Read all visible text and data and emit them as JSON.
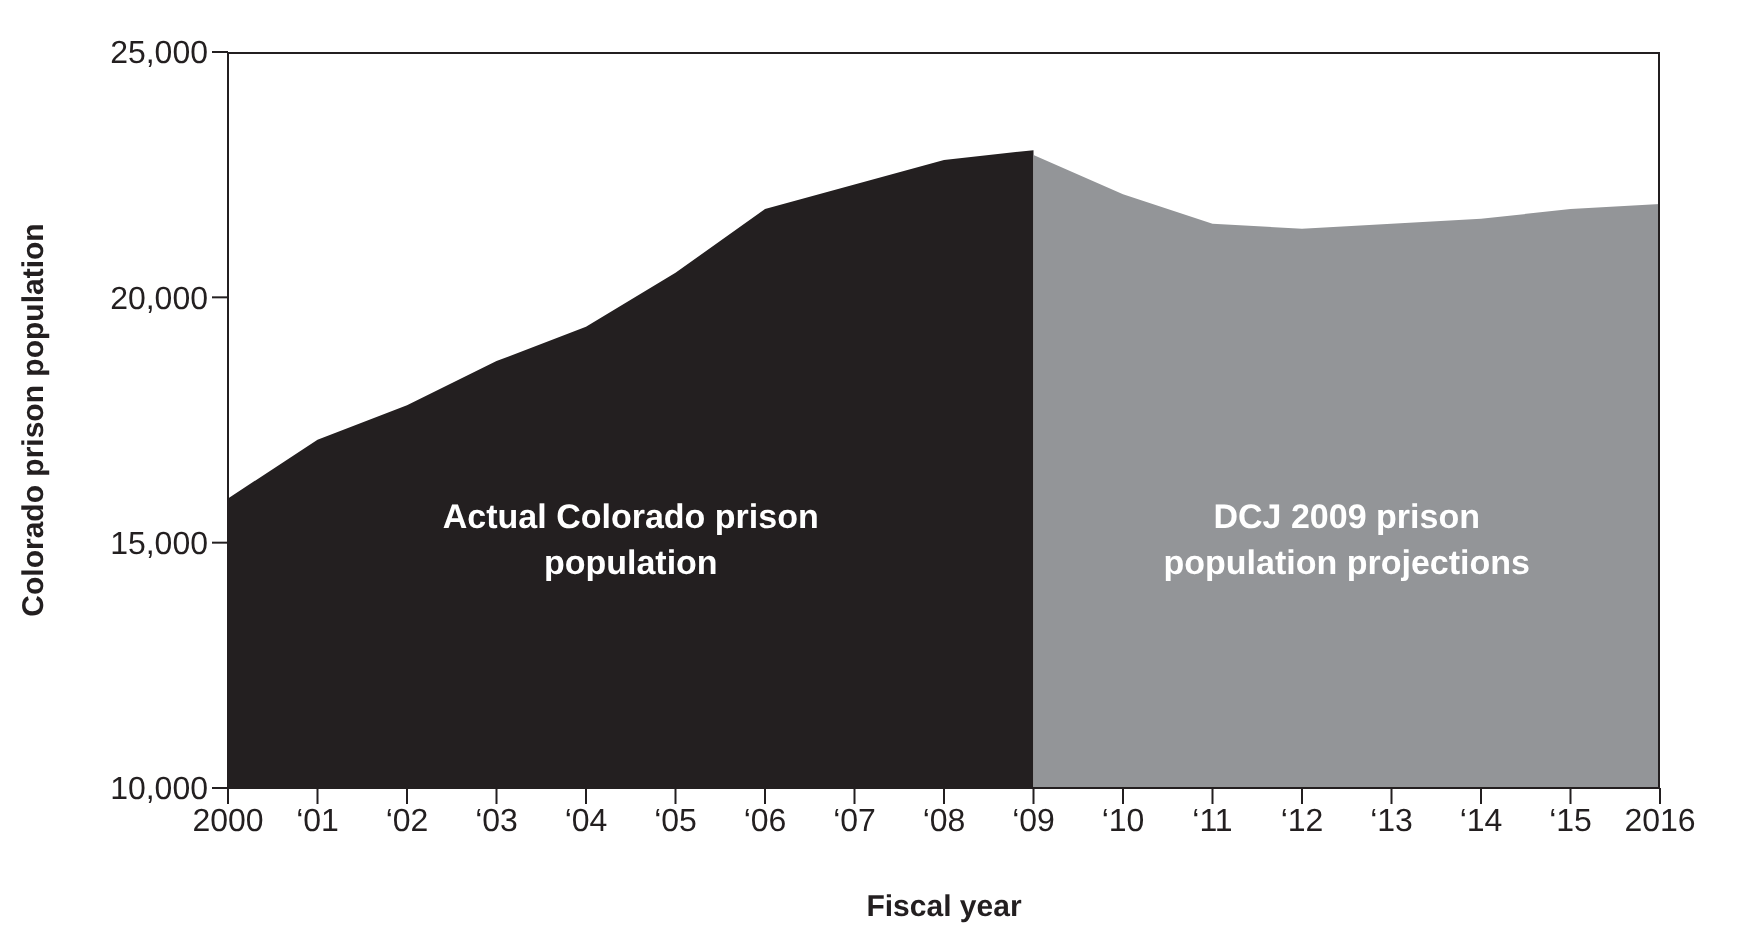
{
  "chart_data": {
    "type": "area",
    "xlabel": "Fiscal year",
    "ylabel": "Colorado prison population",
    "categories": [
      "2000",
      "‘01",
      "‘02",
      "‘03",
      "‘04",
      "‘05",
      "‘06",
      "‘07",
      "‘08",
      "‘09",
      "‘10",
      "‘11",
      "‘12",
      "‘13",
      "‘14",
      "‘15",
      "2016"
    ],
    "series": [
      {
        "name": "Actual Colorado prison population",
        "color": "#231f20",
        "values": [
          15900,
          17100,
          17800,
          18700,
          19400,
          20500,
          21800,
          22300,
          22800,
          23000,
          null,
          null,
          null,
          null,
          null,
          null,
          null
        ]
      },
      {
        "name": "DCJ 2009 prison population projections",
        "color": "#939598",
        "values": [
          null,
          null,
          null,
          null,
          null,
          null,
          null,
          null,
          null,
          22900,
          22100,
          21500,
          21400,
          21500,
          21600,
          21800,
          21900
        ]
      }
    ],
    "ylim": [
      10000,
      25000
    ],
    "yticks": [
      {
        "value": 10000,
        "label": "10,000"
      },
      {
        "value": 15000,
        "label": "15,000"
      },
      {
        "value": 20000,
        "label": "20,000"
      },
      {
        "value": 25000,
        "label": "25,000"
      }
    ],
    "grid": false,
    "legend": false
  }
}
